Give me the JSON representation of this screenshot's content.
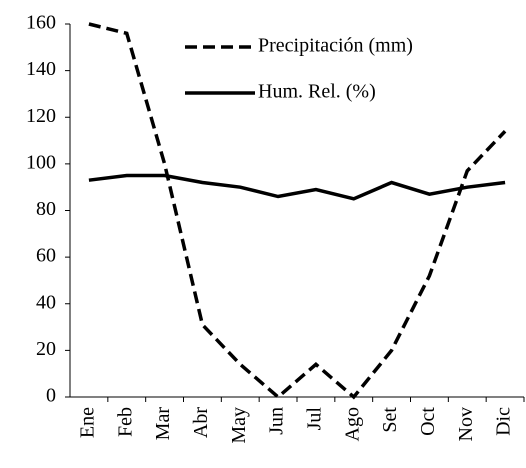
{
  "chart_data": {
    "type": "line",
    "categories": [
      "Ene",
      "Feb",
      "Mar",
      "Abr",
      "May",
      "Jun",
      "Jul",
      "Ago",
      "Set",
      "Oct",
      "Nov",
      "Dic"
    ],
    "series": [
      {
        "name": "Precipitación (mm)",
        "color": "#000000",
        "style": "dashed",
        "values": [
          160,
          156,
          100,
          31,
          14,
          0,
          14,
          0,
          20,
          52,
          97,
          114
        ]
      },
      {
        "name": "Hum. Rel. (%)",
        "color": "#000000",
        "style": "solid",
        "values": [
          93,
          95,
          95,
          92,
          90,
          86,
          89,
          85,
          92,
          87,
          90,
          92
        ]
      }
    ],
    "ylim": [
      0,
      160
    ],
    "yticks": [
      0,
      20,
      40,
      60,
      80,
      100,
      120,
      140,
      160
    ],
    "grid": false,
    "legend": "top-right"
  }
}
